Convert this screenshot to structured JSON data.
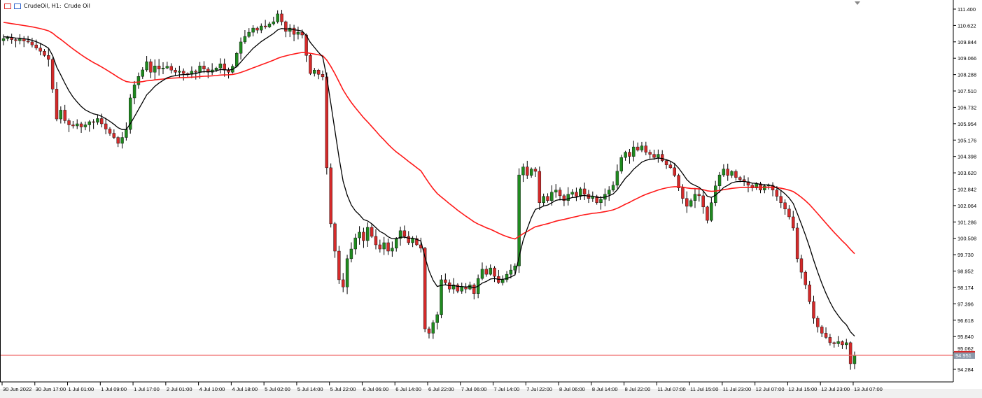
{
  "header": {
    "symbol": "CrudeOil, H1:",
    "description": "Crude Oil",
    "menu_icon": "list-icon",
    "chart_icon": "candles-icon"
  },
  "colors": {
    "bull": "#1f8a1f",
    "bear": "#d42a2a",
    "wick": "#000000",
    "ma_fast": "#000000",
    "ma_slow": "#ff1a1a",
    "price_line": "#f07070",
    "price_label_bg": "#8c9aab"
  },
  "chart_data": {
    "type": "candlestick",
    "title": "CrudeOil, H1: Crude Oil",
    "timeframe": "H1",
    "ylim": [
      93.9,
      111.75
    ],
    "yticks": [
      "111.400",
      "110.622",
      "109.844",
      "109.066",
      "108.288",
      "107.510",
      "106.732",
      "105.954",
      "105.176",
      "104.398",
      "103.620",
      "102.842",
      "102.064",
      "101.286",
      "100.508",
      "99.730",
      "98.952",
      "98.174",
      "97.396",
      "96.618",
      "95.840",
      "95.062",
      "94.284"
    ],
    "xticks": [
      "30 Jun 2022",
      "30 Jun 17:00",
      "1 Jul 01:00",
      "1 Jul 09:00",
      "1 Jul 17:00",
      "2 Jul 01:00",
      "4 Jul 10:00",
      "4 Jul 18:00",
      "5 Jul 02:00",
      "5 Jul 14:00",
      "5 Jul 22:00",
      "6 Jul 06:00",
      "6 Jul 14:00",
      "6 Jul 22:00",
      "7 Jul 06:00",
      "7 Jul 14:00",
      "7 Jul 22:00",
      "8 Jul 06:00",
      "8 Jul 14:00",
      "8 Jul 22:00",
      "11 Jul 07:00",
      "11 Jul 15:00",
      "11 Jul 23:00",
      "12 Jul 07:00",
      "12 Jul 15:00",
      "12 Jul 23:00",
      "13 Jul 07:00"
    ],
    "current_price": 94.951,
    "current_price_label": "94.951",
    "grid": false,
    "indicators": [
      {
        "type": "moving average",
        "period": 10,
        "color": "#000000"
      },
      {
        "type": "moving average",
        "period": 50,
        "color": "#ff1a1a"
      }
    ],
    "first_open": 109.9,
    "close": [
      110.0,
      110.05,
      109.95,
      109.9,
      109.98,
      109.88,
      109.84,
      109.7,
      109.55,
      109.4,
      109.2,
      109.01,
      107.6,
      106.18,
      106.6,
      106.1,
      105.9,
      105.85,
      105.95,
      105.8,
      105.9,
      106.05,
      106.02,
      106.2,
      105.95,
      105.7,
      105.5,
      105.3,
      105.02,
      105.3,
      105.68,
      107.18,
      107.8,
      108.2,
      108.51,
      108.9,
      108.4,
      108.7,
      108.55,
      108.6,
      108.68,
      108.5,
      108.4,
      108.45,
      108.34,
      108.3,
      108.45,
      108.4,
      108.7,
      108.55,
      108.4,
      108.51,
      108.6,
      108.8,
      108.5,
      108.4,
      108.68,
      109.3,
      109.84,
      110.1,
      110.3,
      110.5,
      110.4,
      110.6,
      110.55,
      110.7,
      110.8,
      111.17,
      110.8,
      110.34,
      110.5,
      110.2,
      110.3,
      110.17,
      109.2,
      108.34,
      108.5,
      108.3,
      108.18,
      103.86,
      101.2,
      99.9,
      98.54,
      98.2,
      99.54,
      100.0,
      100.53,
      100.8,
      100.4,
      101.03,
      100.6,
      100.2,
      100.0,
      100.3,
      99.9,
      100.04,
      100.5,
      100.87,
      100.6,
      100.3,
      100.5,
      100.2,
      100.04,
      96.21,
      96.0,
      96.5,
      96.88,
      98.54,
      98.4,
      98.1,
      98.3,
      98.0,
      98.21,
      98.1,
      98.3,
      97.88,
      98.6,
      99.04,
      98.8,
      99.1,
      98.7,
      98.4,
      98.54,
      98.8,
      99.0,
      99.2,
      103.52,
      103.9,
      103.5,
      103.8,
      103.69,
      102.2,
      102.5,
      102.3,
      102.7,
      102.8,
      102.53,
      102.3,
      102.6,
      102.7,
      102.5,
      102.86,
      102.6,
      102.4,
      102.5,
      102.2,
      102.36,
      102.6,
      102.8,
      103.03,
      103.7,
      104.35,
      104.6,
      104.4,
      104.85,
      104.7,
      104.9,
      104.6,
      104.5,
      104.35,
      104.5,
      104.2,
      104.0,
      103.86,
      103.5,
      102.9,
      102.4,
      102.03,
      102.3,
      102.6,
      102.53,
      102.0,
      101.36,
      102.2,
      103.0,
      103.52,
      103.8,
      103.5,
      103.69,
      103.4,
      103.3,
      103.2,
      103.03,
      102.9,
      103.1,
      102.8,
      103.0,
      103.03,
      102.8,
      102.5,
      102.2,
      101.9,
      101.53,
      101.0,
      99.54,
      98.9,
      98.3,
      97.5,
      96.71,
      96.3,
      96.0,
      95.8,
      95.55,
      95.5,
      95.6,
      95.45,
      95.55,
      94.55,
      94.95
    ]
  }
}
